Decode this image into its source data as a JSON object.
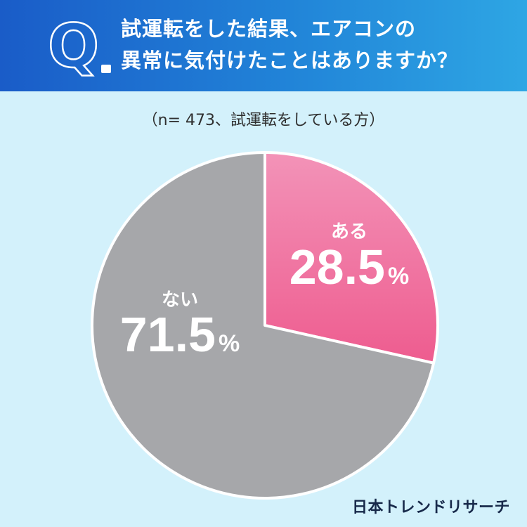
{
  "header": {
    "q_label": "Q",
    "question_line1": "試運転をした結果、エアコンの",
    "question_line2": "異常に気付けたことはありますか？"
  },
  "sample_note": "（n= 473、試運転をしている方）",
  "chart_data": {
    "type": "pie",
    "title": "試運転をした結果、エアコンの異常に気付けたことはありますか？",
    "subtitle": "（n= 473、試運転をしている方）",
    "slices": [
      {
        "label": "ある",
        "value": 28.5,
        "display": "28.5",
        "unit": "%",
        "color": "#f06a9a"
      },
      {
        "label": "ない",
        "value": 71.5,
        "display": "71.5",
        "unit": "%",
        "color": "#a6a7aa"
      }
    ],
    "start_angle": "12 o'clock, clockwise"
  },
  "credit": "日本トレンドリサーチ"
}
